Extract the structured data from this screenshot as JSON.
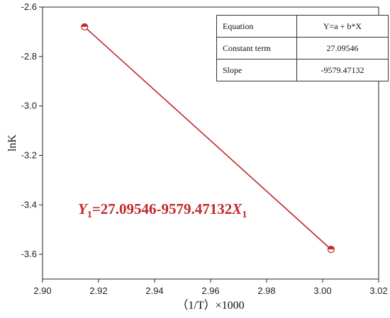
{
  "chart_data": {
    "type": "scatter",
    "title": "",
    "xlabel": "（1/T）×1000",
    "ylabel": "lnK",
    "xlim": [
      2.9,
      3.02
    ],
    "ylim": [
      -3.7,
      -2.6
    ],
    "xticks": [
      "2.90",
      "2.92",
      "2.94",
      "2.96",
      "2.98",
      "3.00",
      "3.02"
    ],
    "yticks": [
      "-2.6",
      "-2.8",
      "-3.0",
      "-3.2",
      "-3.4",
      "-3.6"
    ],
    "points": [
      {
        "x": 2.915,
        "y": -2.68
      },
      {
        "x": 3.003,
        "y": -3.58
      }
    ],
    "fit_line": {
      "x": [
        2.915,
        3.003
      ],
      "y": [
        -2.68,
        -3.58
      ]
    },
    "grid": false,
    "colors": {
      "line": "#c0282a",
      "marker": "#c0282a",
      "annotation": "#c0282a"
    }
  },
  "stats_table": {
    "rows": [
      {
        "key": "Equation",
        "value": "Y=a + b*X"
      },
      {
        "key": "Constant term",
        "value": "27.09546"
      },
      {
        "key": "Slope",
        "value": "-9579.47132"
      }
    ]
  },
  "annotation": {
    "var": "Y",
    "sub1": "1",
    "expression": "=27.09546-9579.47132",
    "var2": "X",
    "sub2": "1"
  }
}
